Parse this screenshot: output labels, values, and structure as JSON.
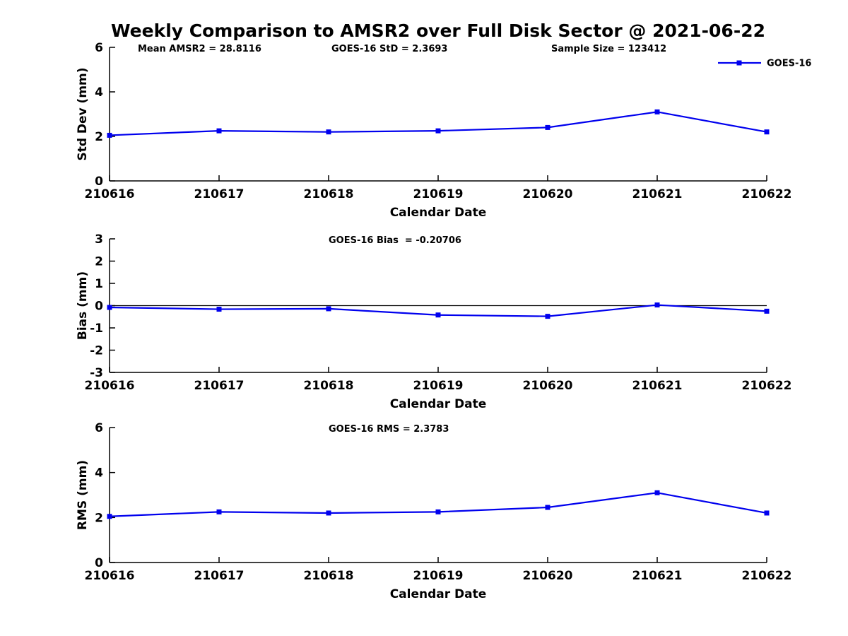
{
  "figure": {
    "title": "Weekly Comparison to AMSR2 over Full Disk Sector @ 2021-06-22",
    "background": "#ffffff",
    "axis_color": "#000000",
    "accent_color": "#0000ee"
  },
  "chart_data": [
    {
      "type": "line",
      "name": "std-dev",
      "stats": [
        "Mean AMSR2 = 28.8116",
        "GOES-16 StD = 2.3693",
        "Sample Size = 123412"
      ],
      "categories": [
        "210616",
        "210617",
        "210618",
        "210619",
        "210620",
        "210621",
        "210622"
      ],
      "series": [
        {
          "name": "GOES-16",
          "color": "#0000ee",
          "marker": "square",
          "values": [
            2.05,
            2.25,
            2.2,
            2.25,
            2.4,
            3.1,
            2.2
          ]
        }
      ],
      "xlabel": "Calendar Date",
      "ylabel": "Std Dev (mm)",
      "ylim": [
        0,
        6
      ],
      "yticks": [
        0,
        2,
        4,
        6
      ],
      "zero_line": false,
      "grid": false,
      "legend": {
        "visible": true,
        "position": "top-right",
        "entries": [
          "GOES-16"
        ]
      }
    },
    {
      "type": "line",
      "name": "bias",
      "stats": [
        "GOES-16 Bias  = -0.20706"
      ],
      "categories": [
        "210616",
        "210617",
        "210618",
        "210619",
        "210620",
        "210621",
        "210622"
      ],
      "series": [
        {
          "name": "GOES-16",
          "color": "#0000ee",
          "marker": "square",
          "values": [
            -0.08,
            -0.16,
            -0.14,
            -0.42,
            -0.48,
            0.03,
            -0.25
          ]
        }
      ],
      "xlabel": "Calendar Date",
      "ylabel": "Bias (mm)",
      "ylim": [
        -3,
        3
      ],
      "yticks": [
        -3,
        -2,
        -1,
        0,
        1,
        2,
        3
      ],
      "zero_line": true,
      "grid": false,
      "legend": {
        "visible": false
      }
    },
    {
      "type": "line",
      "name": "rms",
      "stats": [
        "GOES-16 RMS = 2.3783"
      ],
      "categories": [
        "210616",
        "210617",
        "210618",
        "210619",
        "210620",
        "210621",
        "210622"
      ],
      "series": [
        {
          "name": "GOES-16",
          "color": "#0000ee",
          "marker": "square",
          "values": [
            2.05,
            2.25,
            2.2,
            2.25,
            2.45,
            3.1,
            2.2
          ]
        }
      ],
      "xlabel": "Calendar Date",
      "ylabel": "RMS (mm)",
      "ylim": [
        0,
        6
      ],
      "yticks": [
        0,
        2,
        4,
        6
      ],
      "zero_line": false,
      "grid": false,
      "legend": {
        "visible": false
      }
    }
  ]
}
